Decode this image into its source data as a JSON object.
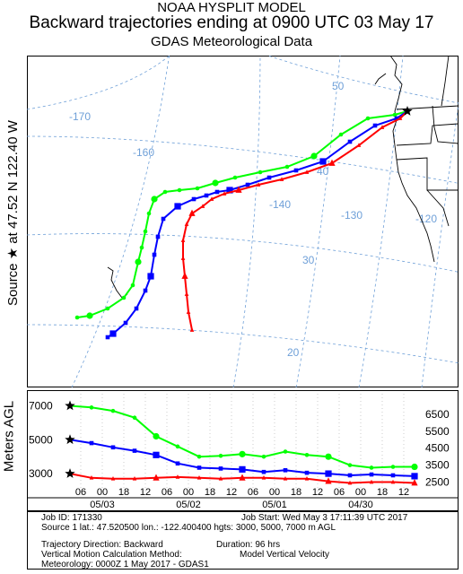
{
  "header": {
    "line1": "NOAA HYSPLIT MODEL",
    "line2": "Backward trajectories ending at 0900 UTC 03 May 17",
    "line3": "GDAS Meteorological Data"
  },
  "map": {
    "source_label": "Source ★ at   47.52 N  122.40 W",
    "longitude_labels": [
      "-170",
      "-160",
      "-140",
      "-130",
      "-120"
    ],
    "latitude_labels": [
      "50",
      "40",
      "30",
      "20"
    ],
    "source_marker_icon": "star-icon",
    "trajectory_colors": {
      "red": "#ff0000",
      "blue": "#0000ff",
      "green": "#00ff00"
    }
  },
  "chart_data": {
    "type": "line",
    "title": "Backward trajectories ending at 0900 UTC 03 May 17",
    "ylabel": "Meters AGL",
    "y_tick_labels_left": [
      "7000",
      "5000",
      "3000"
    ],
    "y_tick_labels_right": [
      "6500",
      "5500",
      "4500",
      "3500",
      "2500"
    ],
    "ylim": [
      2000,
      7500
    ],
    "x_tick_labels": [
      "06",
      "00",
      "18",
      "12",
      "06",
      "00",
      "18",
      "12",
      "06",
      "00",
      "18",
      "12",
      "06",
      "00",
      "18",
      "12"
    ],
    "date_labels": [
      "05/03",
      "05/02",
      "05/01",
      "04/30"
    ],
    "x_hours_before_end": [
      3,
      9,
      15,
      21,
      27,
      33,
      39,
      45,
      51,
      57,
      63,
      69,
      75,
      81,
      87,
      93
    ],
    "series": [
      {
        "color": "#00ff00",
        "marker": "circle",
        "hours": [
          0,
          6,
          12,
          18,
          24,
          30,
          36,
          42,
          48,
          54,
          60,
          66,
          72,
          78,
          84,
          90,
          96
        ],
        "values": [
          7000,
          6900,
          6700,
          6300,
          5200,
          4600,
          4000,
          4050,
          4150,
          4000,
          4300,
          4100,
          4000,
          3500,
          3350,
          3400,
          3400
        ]
      },
      {
        "color": "#0000ff",
        "marker": "square",
        "hours": [
          0,
          6,
          12,
          18,
          24,
          30,
          36,
          42,
          48,
          54,
          60,
          66,
          72,
          78,
          84,
          90,
          96
        ],
        "values": [
          5000,
          4800,
          4550,
          4350,
          4100,
          3600,
          3350,
          3300,
          3250,
          3100,
          3200,
          3050,
          3000,
          2900,
          2950,
          2900,
          2850
        ]
      },
      {
        "color": "#ff0000",
        "marker": "triangle",
        "hours": [
          0,
          6,
          12,
          18,
          24,
          30,
          36,
          42,
          48,
          54,
          60,
          66,
          72,
          78,
          84,
          90,
          96
        ],
        "values": [
          3000,
          2750,
          2700,
          2700,
          2750,
          2800,
          2750,
          2700,
          2750,
          2750,
          2700,
          2700,
          2550,
          2450,
          2500,
          2500,
          2450
        ]
      }
    ]
  },
  "info": {
    "job_id": "Job ID: 171330",
    "job_start": "Job Start: Wed May  3 17:11:39 UTC 2017",
    "source1": "Source 1       lat.: 47.520500   lon.: -122.400400   hgts: 3000, 5000, 7000 m AGL",
    "direction": "Trajectory Direction: Backward",
    "duration": "Duration: 96 hrs",
    "vmethod": "Vertical Motion Calculation Method:",
    "vmodel": "Model Vertical Velocity",
    "meteo": "Meteorology: 0000Z  1 May 2017 - GDAS1"
  }
}
